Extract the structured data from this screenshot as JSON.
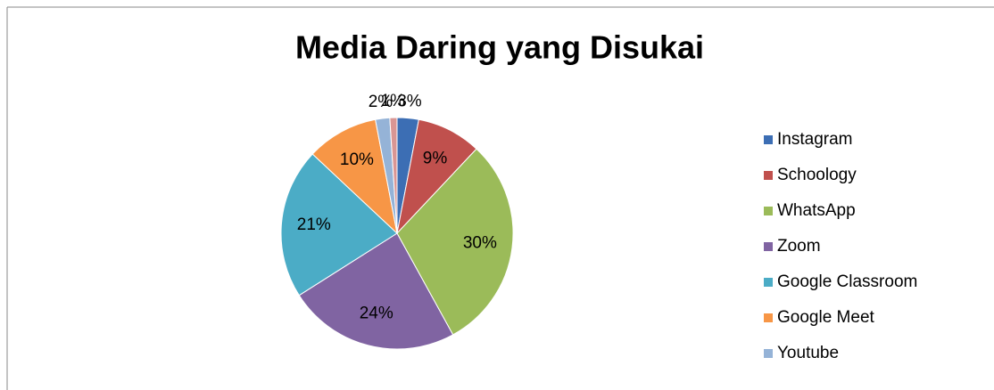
{
  "chart_data": {
    "type": "pie",
    "title": "Media Daring yang Disukai",
    "categories": [
      "Instagram",
      "Schoology",
      "WhatsApp",
      "Zoom",
      "Google Classroom",
      "Google Meet",
      "Youtube",
      null
    ],
    "values": [
      3,
      9,
      30,
      24,
      21,
      10,
      2,
      1
    ],
    "value_labels": [
      "3%",
      "9%",
      "30%",
      "24%",
      "21%",
      "10%",
      "2%",
      "1%"
    ],
    "colors": [
      "#3c6eb4",
      "#c0504d",
      "#9bbb59",
      "#8064a2",
      "#4bacc6",
      "#f79646",
      "#95b3d7",
      "#d99694"
    ],
    "legend": "right"
  }
}
